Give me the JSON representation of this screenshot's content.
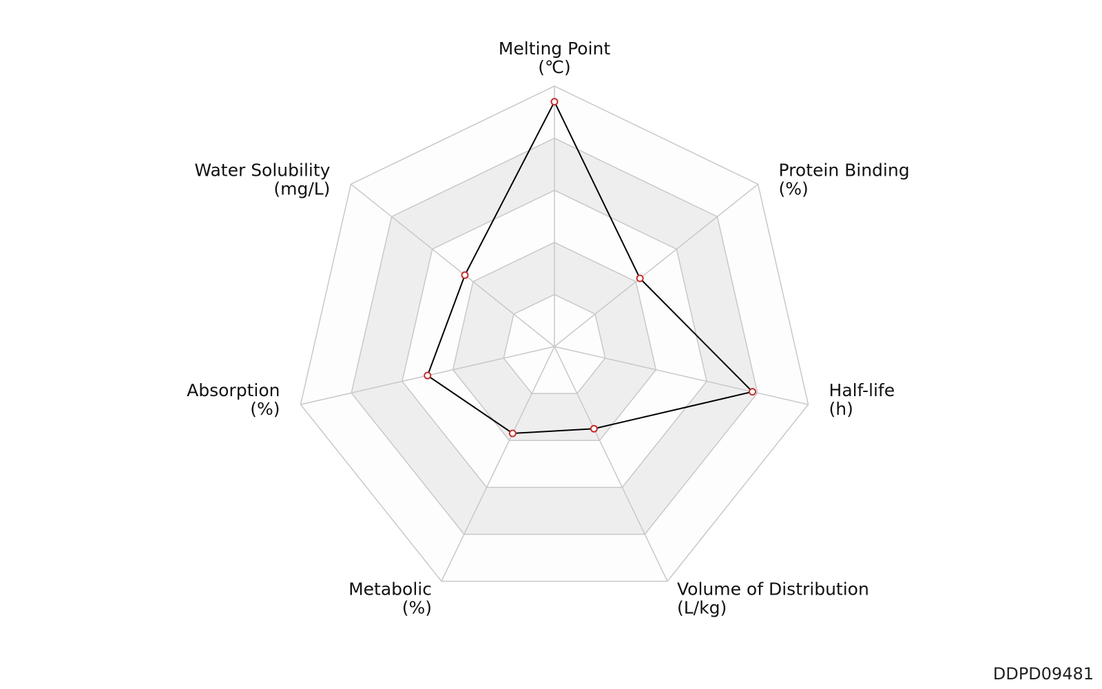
{
  "chart_data": {
    "type": "radar",
    "axes": [
      {
        "name": "Melting Point",
        "unit": "(℃)"
      },
      {
        "name": "Protein Binding",
        "unit": "(%)"
      },
      {
        "name": "Half-life",
        "unit": "(h)"
      },
      {
        "name": "Volume of Distribution",
        "unit": "(L/kg)"
      },
      {
        "name": "Metabolic",
        "unit": "(%)"
      },
      {
        "name": "Absorption",
        "unit": "(%)"
      },
      {
        "name": "Water Solubility",
        "unit": "(mg/L)"
      }
    ],
    "series": [
      {
        "values": [
          0.94,
          0.42,
          0.78,
          0.35,
          0.37,
          0.5,
          0.44
        ]
      }
    ],
    "range": [
      0,
      1
    ],
    "rings": 5,
    "colors": {
      "ring_shade": "#eeeeee",
      "ring_plain": "#fdfdfd",
      "grid_line": "#c8c8c8",
      "series_line": "#000000",
      "marker_edge": "#c0302a",
      "marker_fill": "#ffffff"
    }
  },
  "footer": {
    "id": "DDPD09481"
  }
}
